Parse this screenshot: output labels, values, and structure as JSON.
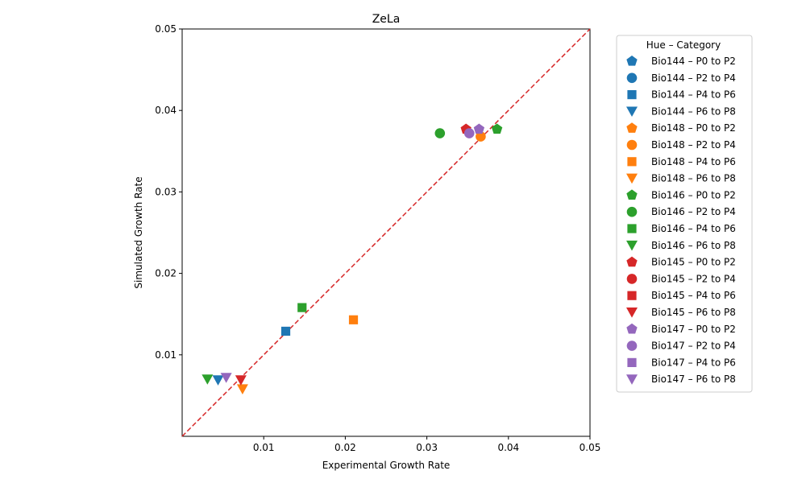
{
  "chart_data": {
    "type": "scatter",
    "title": "ZeLa",
    "xlabel": "Experimental Growth Rate",
    "ylabel": "Simulated Growth Rate",
    "xlim": [
      0.0,
      0.05
    ],
    "ylim": [
      0.0,
      0.05
    ],
    "xticks": [
      "0.01",
      "0.02",
      "0.03",
      "0.04",
      "0.05"
    ],
    "yticks": [
      "0.01",
      "0.02",
      "0.03",
      "0.04",
      "0.05"
    ],
    "grid": false,
    "reference_line": {
      "type": "identity",
      "color": "#d62728",
      "style": "dashed"
    },
    "legend": {
      "title": "Hue – Category",
      "placement": "outside-right"
    },
    "series": [
      {
        "name": "Bio144 – P0 to P2",
        "color": "#1f77b4",
        "marker": "pentagon",
        "points": []
      },
      {
        "name": "Bio144 – P2 to P4",
        "color": "#1f77b4",
        "marker": "circle",
        "points": []
      },
      {
        "name": "Bio144 – P4 to P6",
        "color": "#1f77b4",
        "marker": "square",
        "points": [
          [
            0.0127,
            0.0129
          ]
        ]
      },
      {
        "name": "Bio144 – P6 to P8",
        "color": "#1f77b4",
        "marker": "triangle-down",
        "points": [
          [
            0.0044,
            0.0069
          ]
        ]
      },
      {
        "name": "Bio148 – P0 to P2",
        "color": "#ff7f0e",
        "marker": "pentagon",
        "points": []
      },
      {
        "name": "Bio148 – P2 to P4",
        "color": "#ff7f0e",
        "marker": "circle",
        "points": [
          [
            0.0366,
            0.0368
          ]
        ]
      },
      {
        "name": "Bio148 – P4 to P6",
        "color": "#ff7f0e",
        "marker": "square",
        "points": [
          [
            0.021,
            0.0143
          ]
        ]
      },
      {
        "name": "Bio148 – P6 to P8",
        "color": "#ff7f0e",
        "marker": "triangle-down",
        "points": [
          [
            0.0074,
            0.0058
          ]
        ]
      },
      {
        "name": "Bio146 – P0 to P2",
        "color": "#2ca02c",
        "marker": "pentagon",
        "points": [
          [
            0.0386,
            0.0377
          ]
        ]
      },
      {
        "name": "Bio146 – P2 to P4",
        "color": "#2ca02c",
        "marker": "circle",
        "points": [
          [
            0.0316,
            0.0372
          ]
        ]
      },
      {
        "name": "Bio146 – P4 to P6",
        "color": "#2ca02c",
        "marker": "square",
        "points": [
          [
            0.0147,
            0.0158
          ]
        ]
      },
      {
        "name": "Bio146 – P6 to P8",
        "color": "#2ca02c",
        "marker": "triangle-down",
        "points": [
          [
            0.0031,
            0.007
          ]
        ]
      },
      {
        "name": "Bio145 – P0 to P2",
        "color": "#d62728",
        "marker": "pentagon",
        "points": [
          [
            0.0348,
            0.0377
          ]
        ]
      },
      {
        "name": "Bio145 – P2 to P4",
        "color": "#d62728",
        "marker": "circle",
        "points": []
      },
      {
        "name": "Bio145 – P4 to P6",
        "color": "#d62728",
        "marker": "square",
        "points": []
      },
      {
        "name": "Bio145 – P6 to P8",
        "color": "#d62728",
        "marker": "triangle-down",
        "points": [
          [
            0.0072,
            0.0069
          ]
        ]
      },
      {
        "name": "Bio147 – P0 to P2",
        "color": "#9467bd",
        "marker": "pentagon",
        "points": [
          [
            0.0364,
            0.0377
          ]
        ]
      },
      {
        "name": "Bio147 – P2 to P4",
        "color": "#9467bd",
        "marker": "circle",
        "points": [
          [
            0.0352,
            0.0372
          ]
        ]
      },
      {
        "name": "Bio147 – P4 to P6",
        "color": "#9467bd",
        "marker": "square",
        "points": []
      },
      {
        "name": "Bio147 – P6 to P8",
        "color": "#9467bd",
        "marker": "triangle-down",
        "points": [
          [
            0.0054,
            0.0072
          ]
        ]
      }
    ]
  }
}
